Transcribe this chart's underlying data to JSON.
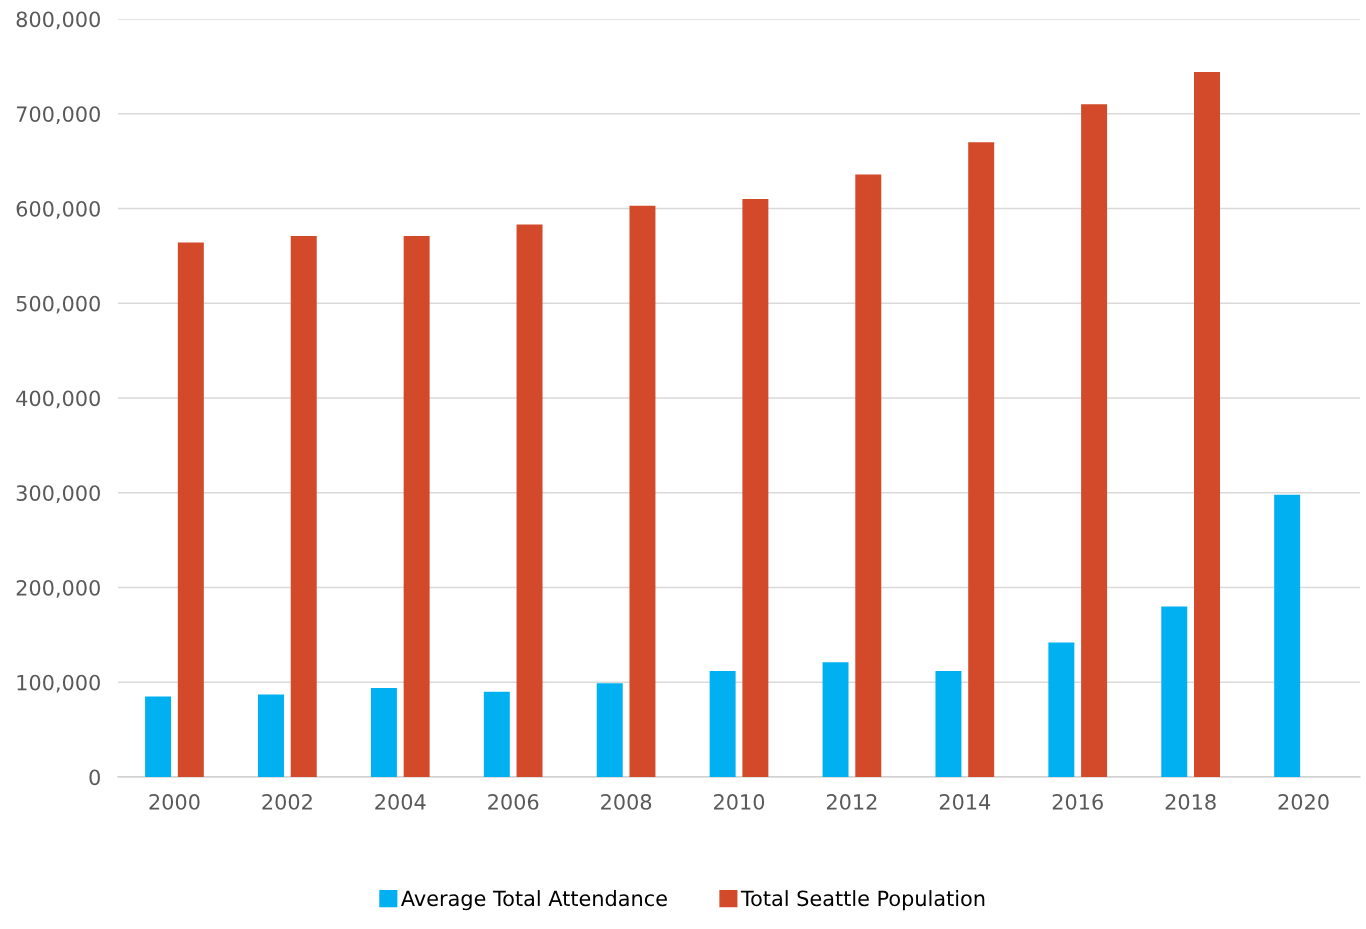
{
  "chart_data": {
    "type": "bar",
    "categories": [
      "2000",
      "2002",
      "2004",
      "2006",
      "2008",
      "2010",
      "2012",
      "2014",
      "2016",
      "2018",
      "2020"
    ],
    "series": [
      {
        "name": "Average Total Attendance",
        "color": "#00b0f0",
        "values": [
          85000,
          87000,
          94000,
          90000,
          99000,
          112000,
          121000,
          112000,
          142000,
          180000,
          298000
        ]
      },
      {
        "name": "Total Seattle Population",
        "color": "#d24a2a",
        "values": [
          564000,
          571000,
          571000,
          583000,
          603000,
          610000,
          636000,
          670000,
          710000,
          744000,
          null
        ]
      }
    ],
    "ylim": [
      0,
      800000
    ],
    "yticks": [
      {
        "value": 0,
        "label": "0"
      },
      {
        "value": 100000,
        "label": "100,000"
      },
      {
        "value": 200000,
        "label": "200,000"
      },
      {
        "value": 300000,
        "label": "300,000"
      },
      {
        "value": 400000,
        "label": "400,000"
      },
      {
        "value": 500000,
        "label": "500,000"
      },
      {
        "value": 600000,
        "label": "600,000"
      },
      {
        "value": 700000,
        "label": "700,000"
      },
      {
        "value": 800000,
        "label": "800,000"
      }
    ],
    "grid": "y",
    "legend": "bottom"
  }
}
